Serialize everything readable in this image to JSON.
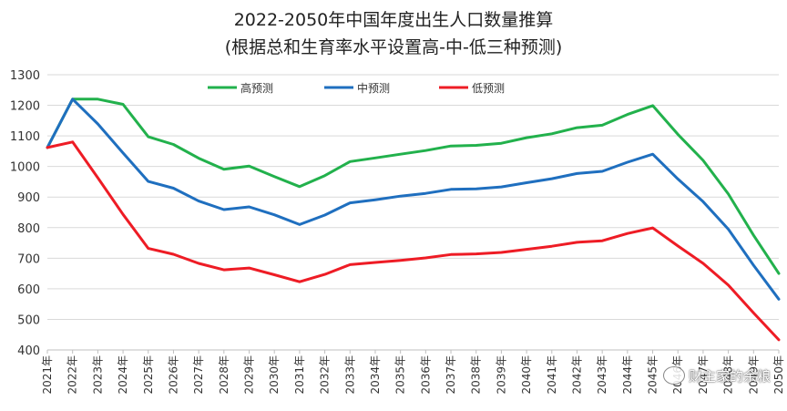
{
  "chart_data": {
    "type": "line",
    "title": "2022-2050年中国年度出生人口数量推算",
    "subtitle": "(根据总和生育率水平设置高-中-低三种预测)",
    "xlabel": "",
    "ylabel": "",
    "ylim": [
      400,
      1300
    ],
    "yticks": [
      400,
      500,
      600,
      700,
      800,
      900,
      1000,
      1100,
      1200,
      1300
    ],
    "grid": true,
    "legend": "top-center",
    "categories": [
      "2021年",
      "2022年",
      "2023年",
      "2024年",
      "2025年",
      "2026年",
      "2027年",
      "2028年",
      "2029年",
      "2030年",
      "2031年",
      "2032年",
      "2033年",
      "2034年",
      "2035年",
      "2036年",
      "2037年",
      "2038年",
      "2039年",
      "2040年",
      "2041年",
      "2042年",
      "2043年",
      "2044年",
      "2045年",
      "2046年",
      "2047年",
      "2048年",
      "2049年",
      "2050年"
    ],
    "series": [
      {
        "name": "高预测",
        "color": "#22b14c",
        "values": [
          1062,
          1220,
          1220,
          1203,
          1097,
          1072,
          1027,
          991,
          1001,
          967,
          934,
          970,
          1016,
          1028,
          1040,
          1052,
          1067,
          1069,
          1076,
          1094,
          1107,
          1127,
          1135,
          1170,
          1199,
          1105,
          1020,
          910,
          775,
          650
        ]
      },
      {
        "name": "中预测",
        "color": "#1f6fbf",
        "values": [
          1062,
          1220,
          1139,
          1044,
          951,
          929,
          887,
          859,
          868,
          842,
          810,
          841,
          881,
          891,
          903,
          912,
          925,
          927,
          933,
          947,
          960,
          977,
          984,
          1014,
          1040,
          959,
          885,
          795,
          677,
          566
        ]
      },
      {
        "name": "低预测",
        "color": "#ee1c25",
        "values": [
          1062,
          1080,
          963,
          843,
          732,
          713,
          683,
          662,
          668,
          646,
          623,
          647,
          679,
          686,
          693,
          701,
          712,
          714,
          719,
          729,
          739,
          752,
          757,
          781,
          799,
          740,
          683,
          612,
          521,
          433
        ]
      }
    ]
  },
  "watermark": {
    "text": "财主家的余粮",
    "icon": "wechat-icon"
  }
}
